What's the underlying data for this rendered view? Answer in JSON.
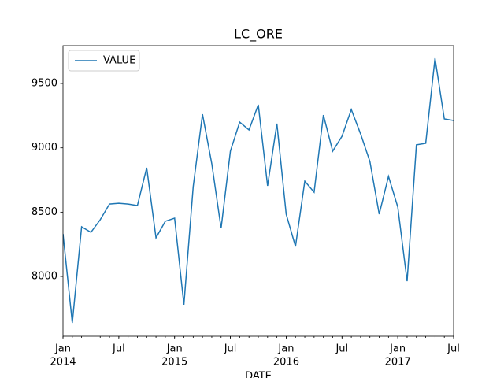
{
  "chart_data": {
    "type": "line",
    "title": "LC_ORE",
    "x_label": "DATE",
    "x": [
      "2014-01",
      "2014-02",
      "2014-03",
      "2014-04",
      "2014-05",
      "2014-06",
      "2014-07",
      "2014-08",
      "2014-09",
      "2014-10",
      "2014-11",
      "2014-12",
      "2015-01",
      "2015-02",
      "2015-03",
      "2015-04",
      "2015-05",
      "2015-06",
      "2015-07",
      "2015-08",
      "2015-09",
      "2015-10",
      "2015-11",
      "2015-12",
      "2016-01",
      "2016-02",
      "2016-03",
      "2016-04",
      "2016-05",
      "2016-06",
      "2016-07",
      "2016-08",
      "2016-09",
      "2016-10",
      "2016-11",
      "2016-12",
      "2017-01",
      "2017-02",
      "2017-03",
      "2017-04",
      "2017-05",
      "2017-06",
      "2017-07"
    ],
    "series": [
      {
        "name": "VALUE",
        "color": "#1f77b4",
        "values": [
          8331,
          7639,
          8386,
          8343,
          8441,
          8563,
          8569,
          8563,
          8551,
          8845,
          8300,
          8429,
          8453,
          7780,
          8698,
          9261,
          8876,
          8374,
          8974,
          9200,
          9139,
          9335,
          8704,
          9188,
          8484,
          8233,
          8741,
          8655,
          9255,
          8974,
          9090,
          9298,
          9108,
          8894,
          8484,
          8778,
          8539,
          7963,
          9023,
          9035,
          9696,
          9225,
          9212
        ]
      }
    ],
    "xlim": [
      "2014-01",
      "2017-07"
    ],
    "xticks": [
      {
        "value": "2014-01",
        "label": "Jan"
      },
      {
        "value": "2014-07",
        "label": "Jul"
      },
      {
        "value": "2015-01",
        "label": "Jan"
      },
      {
        "value": "2015-07",
        "label": "Jul"
      },
      {
        "value": "2016-01",
        "label": "Jan"
      },
      {
        "value": "2016-07",
        "label": "Jul"
      },
      {
        "value": "2017-01",
        "label": "Jan"
      },
      {
        "value": "2017-07",
        "label": "Jul"
      }
    ],
    "xticks_secondary": [
      {
        "value": "2014-01",
        "label": "2014"
      },
      {
        "value": "2015-01",
        "label": "2015"
      },
      {
        "value": "2016-01",
        "label": "2016"
      },
      {
        "value": "2017-01",
        "label": "2017"
      }
    ],
    "ylim": [
      7535,
      9794
    ],
    "yticks": [
      8000,
      8500,
      9000,
      9500
    ],
    "legend": "upper left"
  }
}
